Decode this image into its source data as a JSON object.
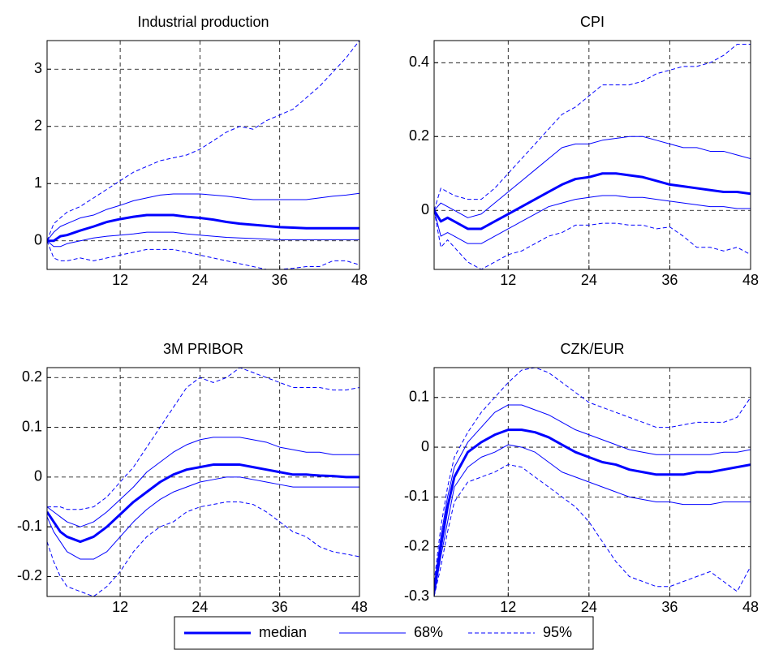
{
  "legend": [
    {
      "name": "median",
      "color": "#0000ff",
      "width": 3,
      "style": "solid"
    },
    {
      "name": "68%",
      "color": "#0000ff",
      "width": 1,
      "style": "solid"
    },
    {
      "name": "95%",
      "color": "#0000ff",
      "width": 1,
      "style": "dashed"
    }
  ],
  "chart_data": [
    {
      "type": "line",
      "title": "Industrial production",
      "x": [
        1,
        2,
        3,
        4,
        6,
        8,
        10,
        12,
        14,
        16,
        18,
        20,
        22,
        24,
        26,
        28,
        30,
        32,
        34,
        36,
        38,
        40,
        42,
        44,
        46,
        48
      ],
      "xlim": [
        1,
        48
      ],
      "xticks": [
        12,
        24,
        36,
        48
      ],
      "ylim": [
        -0.5,
        3.5
      ],
      "yticks": [
        0,
        1,
        2,
        3
      ],
      "grid": true,
      "series": [
        {
          "values": [
            0,
            0,
            0.08,
            0.1,
            0.18,
            0.25,
            0.33,
            0.38,
            0.42,
            0.45,
            0.45,
            0.45,
            0.42,
            0.4,
            0.37,
            0.33,
            0.3,
            0.28,
            0.26,
            0.24,
            0.23,
            0.22,
            0.22,
            0.22,
            0.22,
            0.22
          ]
        },
        {
          "lower": [
            0,
            -0.1,
            -0.1,
            -0.05,
            0,
            0.05,
            0.08,
            0.1,
            0.12,
            0.15,
            0.15,
            0.15,
            0.12,
            0.1,
            0.08,
            0.06,
            0.05,
            0.04,
            0.03,
            0.02,
            0.02,
            0.02,
            0.02,
            0.02,
            0.02,
            0.02
          ],
          "upper": [
            0,
            0.15,
            0.25,
            0.3,
            0.4,
            0.45,
            0.55,
            0.62,
            0.7,
            0.75,
            0.8,
            0.82,
            0.82,
            0.82,
            0.8,
            0.78,
            0.75,
            0.72,
            0.72,
            0.72,
            0.72,
            0.72,
            0.75,
            0.78,
            0.8,
            0.83
          ]
        },
        {
          "lower": [
            0,
            -0.3,
            -0.35,
            -0.35,
            -0.3,
            -0.35,
            -0.3,
            -0.25,
            -0.2,
            -0.15,
            -0.15,
            -0.15,
            -0.2,
            -0.25,
            -0.3,
            -0.35,
            -0.4,
            -0.45,
            -0.5,
            -0.5,
            -0.48,
            -0.45,
            -0.45,
            -0.35,
            -0.35,
            -0.42
          ],
          "upper": [
            0,
            0.3,
            0.4,
            0.5,
            0.6,
            0.75,
            0.9,
            1.05,
            1.2,
            1.3,
            1.4,
            1.45,
            1.5,
            1.6,
            1.75,
            1.9,
            2.0,
            1.95,
            2.1,
            2.2,
            2.3,
            2.5,
            2.7,
            2.95,
            3.2,
            3.5
          ]
        }
      ]
    },
    {
      "type": "line",
      "title": "CPI",
      "x": [
        1,
        2,
        3,
        4,
        6,
        8,
        10,
        12,
        14,
        16,
        18,
        20,
        22,
        24,
        26,
        28,
        30,
        32,
        34,
        36,
        38,
        40,
        42,
        44,
        46,
        48
      ],
      "xlim": [
        1,
        48
      ],
      "xticks": [
        12,
        24,
        36,
        48
      ],
      "ylim": [
        -0.16,
        0.46
      ],
      "yticks": [
        0,
        0.2,
        0.4
      ],
      "grid": true,
      "series": [
        {
          "values": [
            0,
            -0.03,
            -0.02,
            -0.03,
            -0.05,
            -0.05,
            -0.03,
            -0.01,
            0.01,
            0.03,
            0.05,
            0.07,
            0.085,
            0.09,
            0.1,
            0.1,
            0.095,
            0.09,
            0.08,
            0.07,
            0.065,
            0.06,
            0.055,
            0.05,
            0.05,
            0.045
          ]
        },
        {
          "lower": [
            0,
            -0.07,
            -0.06,
            -0.07,
            -0.09,
            -0.09,
            -0.07,
            -0.05,
            -0.03,
            -0.01,
            0.01,
            0.02,
            0.03,
            0.035,
            0.04,
            0.04,
            0.035,
            0.035,
            0.03,
            0.025,
            0.02,
            0.015,
            0.01,
            0.01,
            0.005,
            0.005
          ],
          "upper": [
            0,
            0.02,
            0.01,
            0,
            -0.02,
            -0.01,
            0.02,
            0.05,
            0.08,
            0.11,
            0.14,
            0.17,
            0.18,
            0.18,
            0.19,
            0.195,
            0.2,
            0.2,
            0.19,
            0.18,
            0.17,
            0.17,
            0.16,
            0.16,
            0.15,
            0.14
          ]
        },
        {
          "lower": [
            0,
            -0.1,
            -0.08,
            -0.1,
            -0.14,
            -0.16,
            -0.14,
            -0.12,
            -0.11,
            -0.09,
            -0.07,
            -0.06,
            -0.04,
            -0.04,
            -0.035,
            -0.035,
            -0.04,
            -0.04,
            -0.05,
            -0.045,
            -0.07,
            -0.1,
            -0.1,
            -0.11,
            -0.1,
            -0.12
          ],
          "upper": [
            0,
            0.06,
            0.05,
            0.04,
            0.03,
            0.03,
            0.06,
            0.1,
            0.14,
            0.18,
            0.22,
            0.26,
            0.28,
            0.31,
            0.34,
            0.34,
            0.34,
            0.35,
            0.37,
            0.38,
            0.39,
            0.39,
            0.4,
            0.42,
            0.45,
            0.45
          ]
        }
      ]
    },
    {
      "type": "line",
      "title": "3M PRIBOR",
      "x": [
        1,
        2,
        3,
        4,
        6,
        8,
        10,
        12,
        14,
        16,
        18,
        20,
        22,
        24,
        26,
        28,
        30,
        32,
        34,
        36,
        38,
        40,
        42,
        44,
        46,
        48
      ],
      "xlim": [
        1,
        48
      ],
      "xticks": [
        12,
        24,
        36,
        48
      ],
      "ylim": [
        -0.24,
        0.22
      ],
      "yticks": [
        -0.2,
        -0.1,
        0,
        0.1,
        0.2
      ],
      "grid": true,
      "series": [
        {
          "values": [
            -0.07,
            -0.09,
            -0.11,
            -0.12,
            -0.13,
            -0.12,
            -0.1,
            -0.075,
            -0.05,
            -0.03,
            -0.01,
            0.005,
            0.015,
            0.02,
            0.025,
            0.025,
            0.025,
            0.02,
            0.015,
            0.01,
            0.005,
            0.005,
            0.003,
            0.002,
            0,
            0
          ]
        },
        {
          "lower": [
            -0.08,
            -0.11,
            -0.13,
            -0.15,
            -0.165,
            -0.165,
            -0.15,
            -0.12,
            -0.09,
            -0.065,
            -0.045,
            -0.03,
            -0.02,
            -0.01,
            -0.005,
            0,
            0,
            -0.005,
            -0.01,
            -0.015,
            -0.02,
            -0.02,
            -0.02,
            -0.02,
            -0.02,
            -0.02
          ],
          "upper": [
            -0.06,
            -0.07,
            -0.08,
            -0.09,
            -0.1,
            -0.09,
            -0.07,
            -0.045,
            -0.02,
            0.01,
            0.03,
            0.05,
            0.065,
            0.075,
            0.08,
            0.08,
            0.08,
            0.075,
            0.07,
            0.06,
            0.055,
            0.05,
            0.05,
            0.045,
            0.045,
            0.045
          ]
        },
        {
          "lower": [
            -0.13,
            -0.17,
            -0.2,
            -0.22,
            -0.23,
            -0.24,
            -0.22,
            -0.19,
            -0.15,
            -0.12,
            -0.1,
            -0.09,
            -0.07,
            -0.06,
            -0.055,
            -0.05,
            -0.05,
            -0.055,
            -0.07,
            -0.09,
            -0.11,
            -0.12,
            -0.14,
            -0.15,
            -0.155,
            -0.16
          ],
          "upper": [
            -0.06,
            -0.06,
            -0.06,
            -0.065,
            -0.065,
            -0.06,
            -0.04,
            -0.01,
            0.02,
            0.06,
            0.1,
            0.14,
            0.18,
            0.2,
            0.19,
            0.2,
            0.22,
            0.21,
            0.2,
            0.19,
            0.18,
            0.18,
            0.18,
            0.175,
            0.175,
            0.18
          ]
        }
      ]
    },
    {
      "type": "line",
      "title": "CZK/EUR",
      "x": [
        1,
        2,
        3,
        4,
        6,
        8,
        10,
        12,
        14,
        16,
        18,
        20,
        22,
        24,
        26,
        28,
        30,
        32,
        34,
        36,
        38,
        40,
        42,
        44,
        46,
        48
      ],
      "xlim": [
        1,
        48
      ],
      "xticks": [
        12,
        24,
        36,
        48
      ],
      "ylim": [
        -0.3,
        0.16
      ],
      "yticks": [
        -0.3,
        -0.2,
        -0.1,
        0,
        0.1
      ],
      "grid": true,
      "series": [
        {
          "values": [
            -0.29,
            -0.2,
            -0.12,
            -0.06,
            -0.01,
            0.01,
            0.025,
            0.035,
            0.035,
            0.03,
            0.02,
            0.005,
            -0.01,
            -0.02,
            -0.03,
            -0.035,
            -0.045,
            -0.05,
            -0.055,
            -0.055,
            -0.055,
            -0.05,
            -0.05,
            -0.045,
            -0.04,
            -0.035
          ]
        },
        {
          "lower": [
            -0.3,
            -0.22,
            -0.15,
            -0.08,
            -0.04,
            -0.02,
            -0.01,
            0.005,
            0,
            -0.01,
            -0.03,
            -0.05,
            -0.06,
            -0.07,
            -0.08,
            -0.09,
            -0.1,
            -0.105,
            -0.11,
            -0.11,
            -0.115,
            -0.115,
            -0.115,
            -0.11,
            -0.11,
            -0.11
          ],
          "upper": [
            -0.28,
            -0.18,
            -0.1,
            -0.04,
            0.01,
            0.04,
            0.07,
            0.085,
            0.085,
            0.075,
            0.065,
            0.05,
            0.035,
            0.025,
            0.015,
            0.005,
            -0.005,
            -0.01,
            -0.015,
            -0.015,
            -0.015,
            -0.015,
            -0.015,
            -0.01,
            -0.01,
            -0.005
          ]
        },
        {
          "lower": [
            -0.3,
            -0.24,
            -0.17,
            -0.11,
            -0.07,
            -0.06,
            -0.05,
            -0.035,
            -0.04,
            -0.06,
            -0.08,
            -0.1,
            -0.12,
            -0.15,
            -0.19,
            -0.23,
            -0.26,
            -0.27,
            -0.28,
            -0.28,
            -0.27,
            -0.26,
            -0.25,
            -0.27,
            -0.29,
            -0.24
          ],
          "upper": [
            -0.27,
            -0.16,
            -0.08,
            -0.02,
            0.03,
            0.07,
            0.1,
            0.13,
            0.155,
            0.16,
            0.15,
            0.13,
            0.11,
            0.09,
            0.08,
            0.07,
            0.06,
            0.05,
            0.04,
            0.04,
            0.045,
            0.05,
            0.05,
            0.05,
            0.06,
            0.1
          ]
        }
      ]
    }
  ]
}
